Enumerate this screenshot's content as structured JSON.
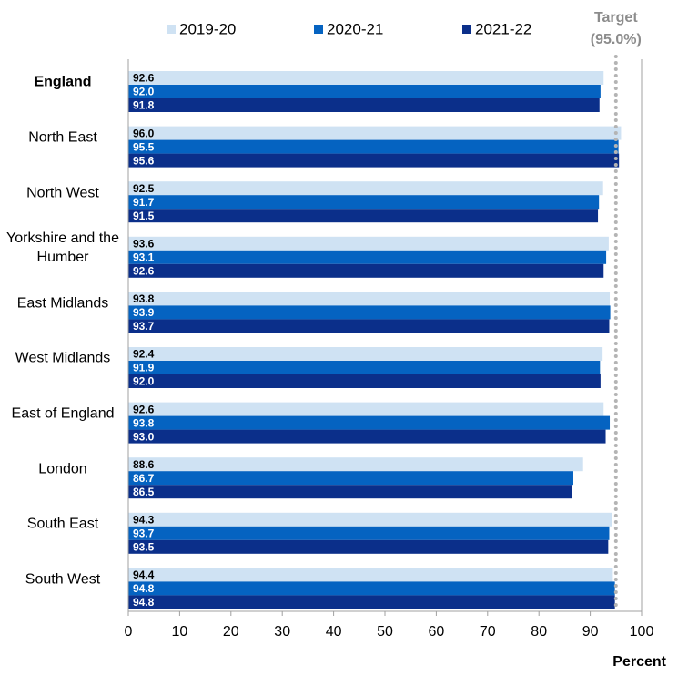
{
  "chart_data": {
    "type": "bar",
    "orientation": "horizontal",
    "categories": [
      "England",
      "North East",
      "North West",
      "Yorkshire and the Humber",
      "East Midlands",
      "West Midlands",
      "East of England",
      "London",
      "South East",
      "South West"
    ],
    "series": [
      {
        "name": "2019-20",
        "color": "#cfe2f3",
        "label_color": "#000000",
        "values": [
          92.6,
          96.0,
          92.5,
          93.6,
          93.8,
          92.4,
          92.6,
          88.6,
          94.3,
          94.4
        ],
        "value_labels": [
          "92.6",
          "96.0",
          "92.5",
          "93.6",
          "93.8",
          "92.4",
          "92.6",
          "88.6",
          "94.3",
          "94.4"
        ]
      },
      {
        "name": "2020-21",
        "color": "#0563c1",
        "label_color": "#ffffff",
        "values": [
          92.0,
          95.5,
          91.7,
          93.1,
          93.9,
          91.9,
          93.8,
          86.7,
          93.7,
          94.8
        ],
        "value_labels": [
          "92.0",
          "95.5",
          "91.7",
          "93.1",
          "93.9",
          "91.9",
          "93.8",
          "86.7",
          "93.7",
          "94.8"
        ]
      },
      {
        "name": "2021-22",
        "color": "#0b2f8a",
        "label_color": "#ffffff",
        "values": [
          91.8,
          95.6,
          91.5,
          92.6,
          93.7,
          92.0,
          93.0,
          86.5,
          93.5,
          94.8
        ],
        "value_labels": [
          "91.8",
          "95.6",
          "91.5",
          "92.6",
          "93.7",
          "92.0",
          "93.0",
          "86.5",
          "93.5",
          "94.8"
        ]
      }
    ],
    "xlim": [
      0,
      100
    ],
    "xticks": [
      0,
      10,
      20,
      30,
      40,
      50,
      60,
      70,
      80,
      90,
      100
    ],
    "xlabel": "Percent",
    "target_title": "Target",
    "target": {
      "value": 95,
      "label": "(95.0%)"
    },
    "target_color": "#b4b4b4"
  }
}
